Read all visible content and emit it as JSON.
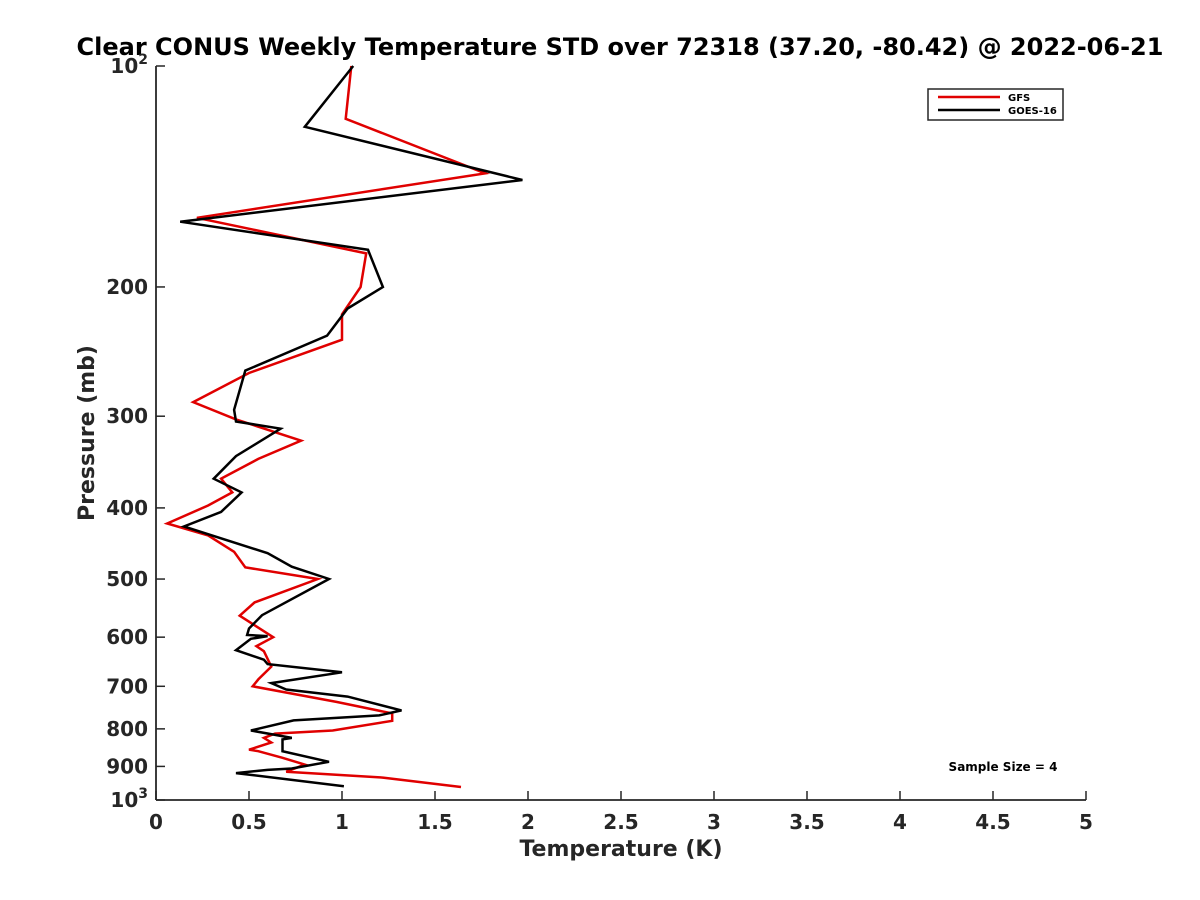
{
  "chart_data": {
    "type": "line",
    "title": "Clear CONUS Weekly Temperature STD over 72318 (37.20, -80.42) @ 2022-06-21",
    "xlabel": "Temperature (K)",
    "ylabel": "Pressure (mb)",
    "xlim": [
      0,
      5
    ],
    "ylim": [
      100,
      1000
    ],
    "y_scale": "log",
    "y_reversed": true,
    "x_ticks": [
      "0",
      "0.5",
      "1",
      "1.5",
      "2",
      "2.5",
      "3",
      "3.5",
      "4",
      "4.5",
      "5"
    ],
    "y_ticks": [
      {
        "value": 100,
        "base": "10",
        "exp": "2"
      },
      {
        "value": 200,
        "label": "200"
      },
      {
        "value": 300,
        "label": "300"
      },
      {
        "value": 400,
        "label": "400"
      },
      {
        "value": 500,
        "label": "500"
      },
      {
        "value": 600,
        "label": "600"
      },
      {
        "value": 700,
        "label": "700"
      },
      {
        "value": 800,
        "label": "800"
      },
      {
        "value": 900,
        "label": "900"
      },
      {
        "value": 1000,
        "base": "10",
        "exp": "3"
      }
    ],
    "grid": false,
    "legend_position": "top-right",
    "annotation": "Sample Size = 4",
    "series": [
      {
        "name": "GFS",
        "color": "#e00000",
        "x": [
          1.05,
          1.02,
          1.77,
          0.22,
          1.13,
          1.1,
          1.0,
          1.0,
          0.5,
          0.2,
          0.43,
          0.78,
          0.55,
          0.35,
          0.41,
          0.28,
          0.06,
          0.28,
          0.42,
          0.48,
          0.87,
          0.53,
          0.45,
          0.54,
          0.63,
          0.54,
          0.58,
          0.62,
          0.55,
          0.52,
          0.97,
          1.27,
          1.27,
          0.95,
          0.64,
          0.58,
          0.62,
          0.5,
          0.55,
          0.68,
          0.8,
          0.7,
          1.22,
          1.64
        ],
        "y": [
          100,
          118,
          140,
          161,
          180,
          200,
          218,
          236,
          262,
          287,
          303,
          324,
          343,
          365,
          381,
          397,
          420,
          436,
          459,
          482,
          500,
          538,
          561,
          580,
          600,
          617,
          627,
          658,
          685,
          700,
          735,
          762,
          780,
          804,
          812,
          823,
          835,
          854,
          858,
          876,
          895,
          915,
          932,
          960
        ]
      },
      {
        "name": "GOES-16",
        "color": "#000000",
        "x": [
          1.06,
          0.8,
          1.97,
          0.13,
          1.14,
          1.22,
          1.03,
          0.92,
          0.48,
          0.42,
          0.43,
          0.67,
          0.43,
          0.31,
          0.46,
          0.35,
          0.15,
          0.6,
          0.73,
          0.93,
          0.57,
          0.5,
          0.49,
          0.6,
          0.51,
          0.43,
          0.58,
          0.6,
          1.0,
          0.62,
          0.7,
          1.03,
          1.32,
          1.2,
          0.74,
          0.51,
          0.73,
          0.68,
          0.68,
          0.93,
          0.73,
          0.6,
          0.43,
          1.01
        ],
        "y": [
          100,
          121,
          143,
          163,
          178,
          200,
          214,
          233,
          260,
          294,
          305,
          312,
          340,
          365,
          381,
          405,
          424,
          461,
          481,
          500,
          560,
          584,
          596,
          598,
          603,
          625,
          644,
          653,
          670,
          693,
          707,
          723,
          755,
          767,
          779,
          804,
          823,
          827,
          858,
          887,
          906,
          910,
          919,
          958
        ]
      }
    ]
  }
}
